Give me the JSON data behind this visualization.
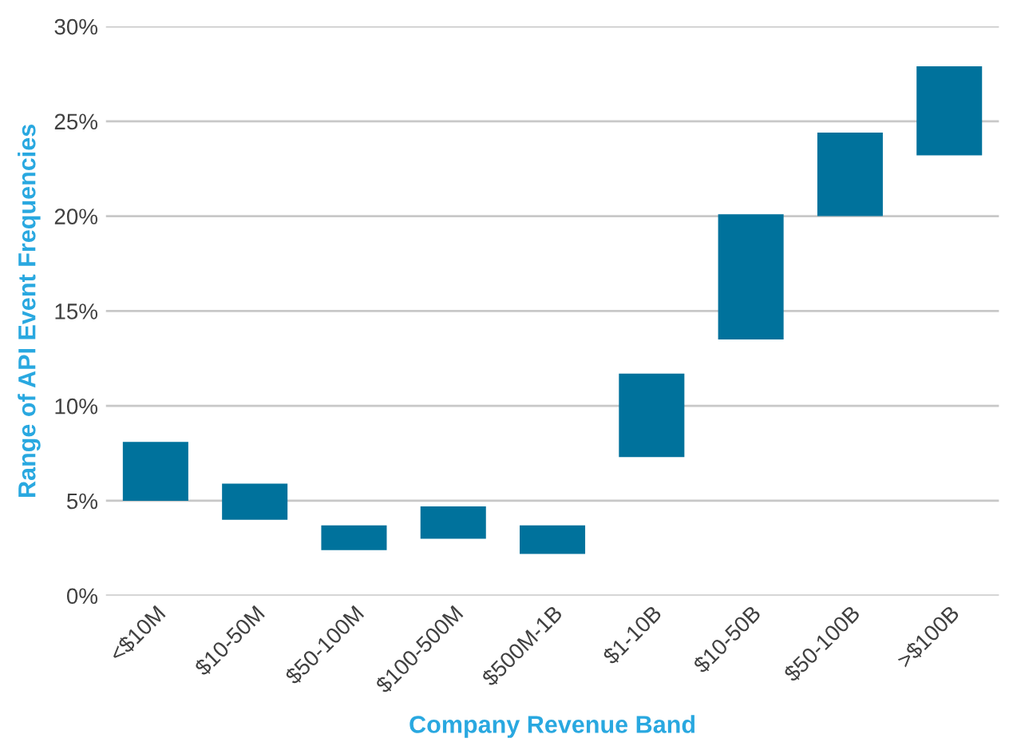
{
  "chart_data": {
    "type": "bar",
    "xlabel": "Company Revenue Band",
    "ylabel": "Range of API Event Frequencies",
    "categories": [
      "<$10M",
      "$10-50M",
      "$50-100M",
      "$100-500M",
      "$500M-1B",
      "$1-10B",
      "$10-50B",
      "$50-100B",
      ">$100B"
    ],
    "base": [
      5.0,
      4.0,
      2.4,
      3.0,
      2.2,
      7.3,
      13.5,
      20.0,
      23.2
    ],
    "values": [
      3.1,
      1.9,
      1.3,
      1.7,
      1.5,
      4.4,
      6.6,
      4.4,
      4.7
    ],
    "color": "#00729c",
    "ylim": [
      0,
      30
    ],
    "yticks": [
      {
        "value": 0,
        "label": "0%"
      },
      {
        "value": 5,
        "label": "5%"
      },
      {
        "value": 10,
        "label": "10%"
      },
      {
        "value": 15,
        "label": "15%"
      },
      {
        "value": 20,
        "label": "20%"
      },
      {
        "value": 25,
        "label": "25%"
      },
      {
        "value": 30,
        "label": "30%"
      }
    ],
    "grid": "y"
  }
}
